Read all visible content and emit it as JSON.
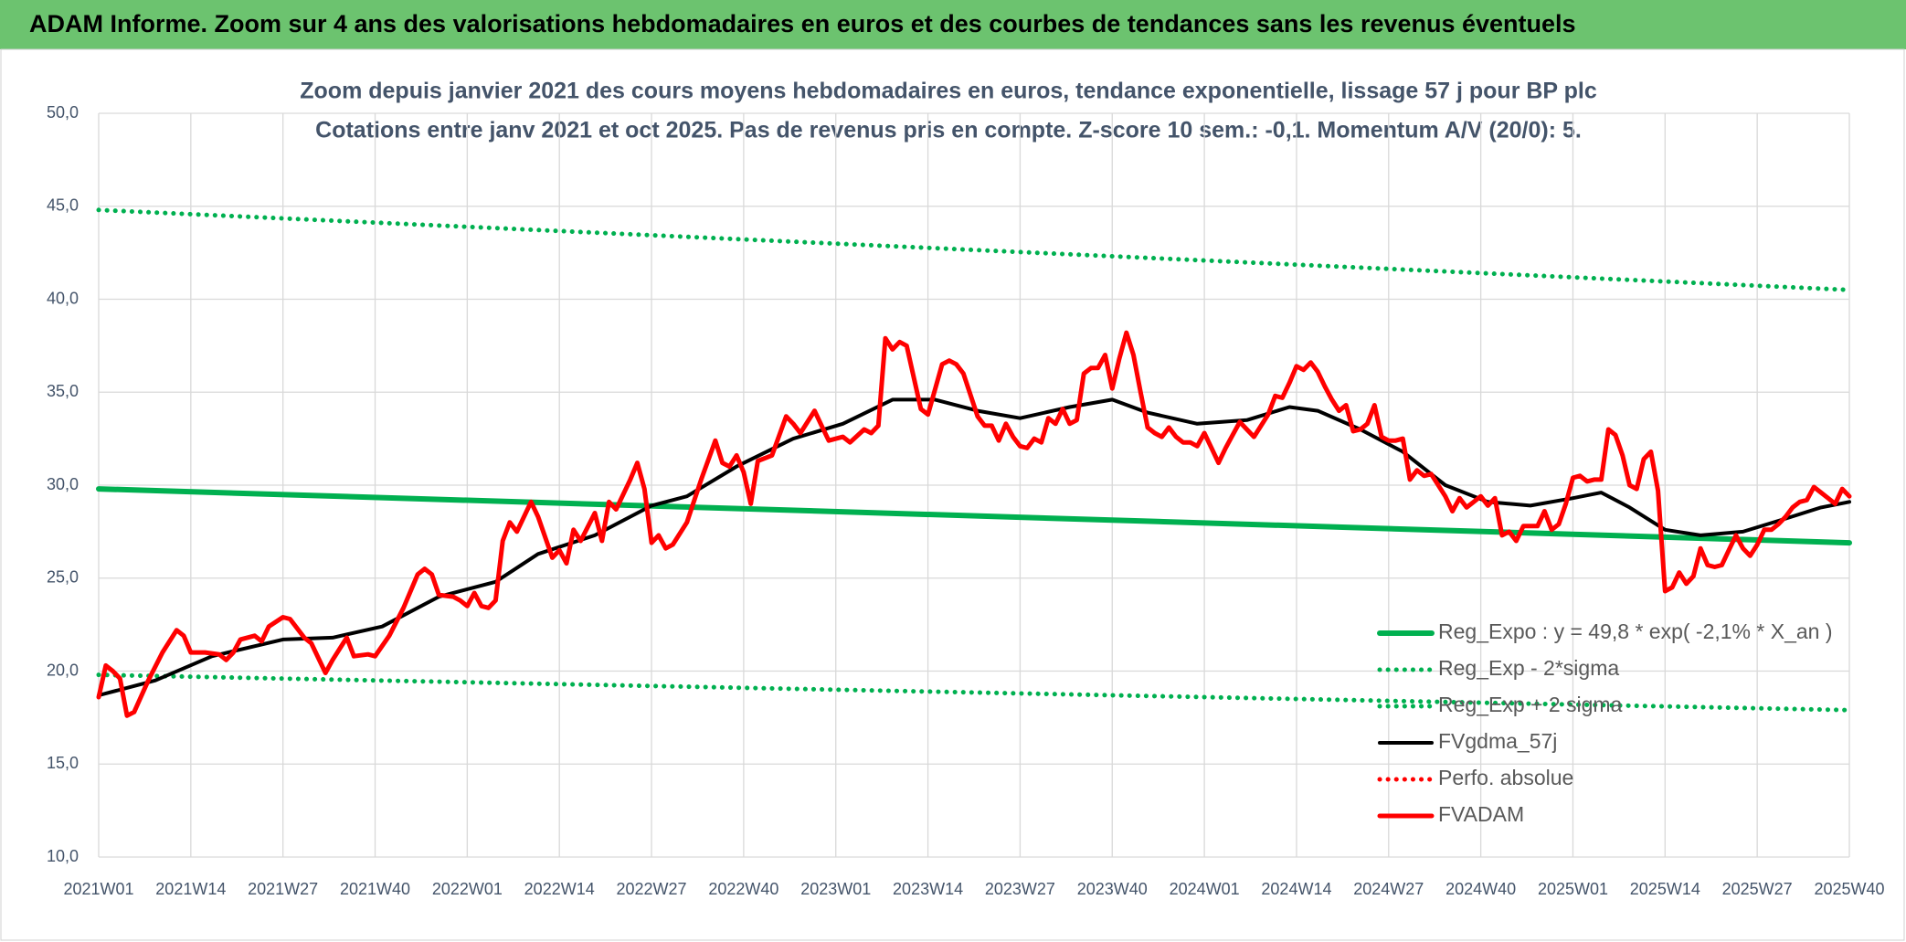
{
  "chart_data": {
    "type": "line",
    "title": "ADAM Informe. Zoom sur 4 ans des valorisations hebdomadaires en euros et des courbes de tendances sans les revenus éventuels",
    "subtitle": [
      "Zoom depuis janvier 2021 des cours moyens hebdomadaires en euros, tendance exponentielle, lissage 57 j pour BP plc",
      "Cotations entre janv 2021 et oct 2025. Pas de revenus pris en compte. Z-score 10 sem.: -0,1. Momentum A/V (20/0): 5."
    ],
    "xlim": [
      0,
      247
    ],
    "xticks": [
      {
        "value": 0,
        "label": "2021W01"
      },
      {
        "value": 13,
        "label": "2021W14"
      },
      {
        "value": 26,
        "label": "2021W27"
      },
      {
        "value": 39,
        "label": "2021W40"
      },
      {
        "value": 52,
        "label": "2022W01"
      },
      {
        "value": 65,
        "label": "2022W14"
      },
      {
        "value": 78,
        "label": "2022W27"
      },
      {
        "value": 91,
        "label": "2022W40"
      },
      {
        "value": 104,
        "label": "2023W01"
      },
      {
        "value": 117,
        "label": "2023W14"
      },
      {
        "value": 130,
        "label": "2023W27"
      },
      {
        "value": 143,
        "label": "2023W40"
      },
      {
        "value": 156,
        "label": "2024W01"
      },
      {
        "value": 169,
        "label": "2024W14"
      },
      {
        "value": 182,
        "label": "2024W27"
      },
      {
        "value": 195,
        "label": "2024W40"
      },
      {
        "value": 208,
        "label": "2025W01"
      },
      {
        "value": 221,
        "label": "2025W14"
      },
      {
        "value": 234,
        "label": "2025W27"
      },
      {
        "value": 247,
        "label": "2025W40"
      }
    ],
    "ylim": [
      10,
      50
    ],
    "yticks": [
      {
        "value": 10,
        "label": "10,0"
      },
      {
        "value": 15,
        "label": "15,0"
      },
      {
        "value": 20,
        "label": "20,0"
      },
      {
        "value": 25,
        "label": "25,0"
      },
      {
        "value": 30,
        "label": "30,0"
      },
      {
        "value": 35,
        "label": "35,0"
      },
      {
        "value": 40,
        "label": "40,0"
      },
      {
        "value": 45,
        "label": "45,0"
      },
      {
        "value": 50,
        "label": "50,0"
      }
    ],
    "grid": true,
    "legend": "lower right",
    "series": [
      {
        "name": "Reg_Expo : y = 49,8 * exp( -2,1% *  X_an )",
        "color": "#00b050",
        "style": "solid",
        "x": [
          0,
          247
        ],
        "values": [
          29.8,
          26.9
        ]
      },
      {
        "name": "Reg_Exp - 2*sigma",
        "color": "#00b050",
        "style": "dotted",
        "x": [
          0,
          247
        ],
        "values": [
          19.8,
          17.9
        ]
      },
      {
        "name": "Reg_Exp + 2 sigma",
        "color": "#00b050",
        "style": "dotted",
        "x": [
          0,
          247
        ],
        "values": [
          44.8,
          40.5
        ]
      },
      {
        "name": "FVgdma_57j",
        "color": "#000000",
        "style": "solid",
        "x": [
          0,
          8,
          16,
          26,
          33,
          40,
          48,
          56,
          62,
          70,
          78,
          83,
          90,
          98,
          105,
          112,
          118,
          124,
          130,
          137,
          143,
          148,
          155,
          162,
          168,
          172,
          178,
          184,
          190,
          196,
          202,
          208,
          212,
          216,
          221,
          226,
          232,
          238,
          243,
          247
        ],
        "values": [
          18.7,
          19.5,
          20.8,
          21.7,
          21.8,
          22.4,
          24.0,
          24.8,
          26.3,
          27.3,
          28.9,
          29.4,
          31.0,
          32.5,
          33.3,
          34.6,
          34.6,
          34.0,
          33.6,
          34.2,
          34.6,
          33.9,
          33.3,
          33.5,
          34.2,
          34.0,
          33.0,
          31.8,
          30.0,
          29.1,
          28.9,
          29.3,
          29.6,
          28.8,
          27.6,
          27.3,
          27.5,
          28.2,
          28.8,
          29.1
        ]
      },
      {
        "name": "Perfo. absolue",
        "color": "#ff0000",
        "style": "dotted",
        "x": [],
        "values": []
      },
      {
        "name": "FVADAM",
        "color": "#ff0000",
        "style": "solid",
        "x": [
          0,
          1,
          2,
          3,
          4,
          5,
          7,
          9,
          11,
          12,
          13,
          15,
          17,
          18,
          19,
          20,
          22,
          23,
          24,
          26,
          27,
          29,
          30,
          32,
          33,
          35,
          36,
          38,
          39,
          41,
          43,
          45,
          46,
          47,
          48,
          50,
          51,
          52,
          53,
          54,
          55,
          56,
          57,
          58,
          59,
          61,
          62,
          64,
          65,
          66,
          67,
          68,
          70,
          71,
          72,
          73,
          75,
          76,
          77,
          78,
          79,
          80,
          81,
          83,
          85,
          87,
          88,
          89,
          90,
          91,
          92,
          93,
          95,
          97,
          98,
          99,
          101,
          102,
          103,
          105,
          106,
          108,
          109,
          110,
          111,
          112,
          113,
          114,
          116,
          117,
          119,
          120,
          121,
          122,
          124,
          125,
          126,
          127,
          128,
          129,
          130,
          131,
          132,
          133,
          134,
          135,
          136,
          137,
          138,
          139,
          140,
          141,
          142,
          143,
          144,
          145,
          146,
          147,
          148,
          149,
          150,
          151,
          152,
          153,
          154,
          155,
          156,
          157,
          158,
          159,
          160,
          161,
          162,
          163,
          165,
          166,
          167,
          168,
          169,
          170,
          171,
          172,
          173,
          174,
          175,
          176,
          177,
          178,
          179,
          180,
          181,
          182,
          183,
          184,
          185,
          186,
          187,
          188,
          190,
          191,
          192,
          193,
          194,
          195,
          196,
          197,
          198,
          199,
          200,
          201,
          202,
          203,
          204,
          205,
          206,
          207,
          208,
          209,
          210,
          211,
          212,
          213,
          214,
          215,
          216,
          217,
          218,
          219,
          220,
          221,
          222,
          223,
          224,
          225,
          226,
          227,
          228,
          229,
          230,
          231,
          232,
          233,
          234,
          235,
          236,
          237,
          238,
          239,
          240,
          241,
          242,
          243,
          244,
          245,
          246,
          247
        ],
        "values": [
          18.6,
          20.3,
          20.0,
          19.6,
          17.6,
          17.8,
          19.5,
          21.0,
          22.2,
          21.9,
          21.0,
          21.0,
          20.9,
          20.6,
          21.0,
          21.7,
          21.9,
          21.6,
          22.4,
          22.9,
          22.8,
          21.8,
          21.5,
          19.9,
          20.6,
          21.8,
          20.8,
          20.9,
          20.8,
          21.9,
          23.4,
          25.2,
          25.5,
          25.2,
          24.1,
          24.0,
          23.8,
          23.5,
          24.2,
          23.5,
          23.4,
          23.8,
          27.0,
          28.0,
          27.5,
          29.1,
          28.3,
          26.1,
          26.5,
          25.8,
          27.6,
          27.0,
          28.5,
          27.0,
          29.1,
          28.7,
          30.3,
          31.2,
          29.8,
          26.9,
          27.3,
          26.6,
          26.8,
          28.0,
          30.3,
          32.4,
          31.2,
          31.0,
          31.6,
          30.7,
          29.0,
          31.3,
          31.6,
          33.7,
          33.3,
          32.8,
          34.0,
          33.2,
          32.4,
          32.6,
          32.3,
          33.0,
          32.8,
          33.2,
          37.9,
          37.3,
          37.7,
          37.5,
          34.1,
          33.8,
          36.5,
          36.7,
          36.5,
          36.0,
          33.7,
          33.2,
          33.2,
          32.4,
          33.3,
          32.6,
          32.1,
          32.0,
          32.5,
          32.3,
          33.6,
          33.3,
          34.1,
          33.3,
          33.5,
          36.0,
          36.3,
          36.3,
          37.0,
          35.2,
          36.8,
          38.2,
          37.0,
          35.0,
          33.1,
          32.8,
          32.6,
          33.1,
          32.6,
          32.3,
          32.3,
          32.1,
          32.8,
          32.0,
          31.2,
          32.0,
          32.7,
          33.4,
          33.0,
          32.6,
          33.8,
          34.8,
          34.7,
          35.5,
          36.4,
          36.2,
          36.6,
          36.1,
          35.3,
          34.6,
          34.0,
          34.3,
          32.9,
          33.0,
          33.3,
          34.3,
          32.6,
          32.4,
          32.4,
          32.5,
          30.3,
          30.8,
          30.5,
          30.6,
          29.4,
          28.6,
          29.3,
          28.8,
          29.1,
          29.4,
          28.9,
          29.3,
          27.3,
          27.5,
          27.0,
          27.8,
          27.8,
          27.8,
          28.6,
          27.6,
          27.9,
          29.0,
          30.4,
          30.5,
          30.2,
          30.3,
          30.3,
          33.0,
          32.7,
          31.6,
          30.0,
          29.8,
          31.4,
          31.8,
          29.7,
          24.3,
          24.5,
          25.3,
          24.7,
          25.1,
          26.6,
          25.7,
          25.6,
          25.7,
          26.5,
          27.3,
          26.6,
          26.2,
          26.8,
          27.6,
          27.6,
          27.9,
          28.3,
          28.8,
          29.1,
          29.2,
          29.9,
          29.6,
          29.3,
          29.0,
          29.8,
          29.4
        ]
      }
    ]
  }
}
